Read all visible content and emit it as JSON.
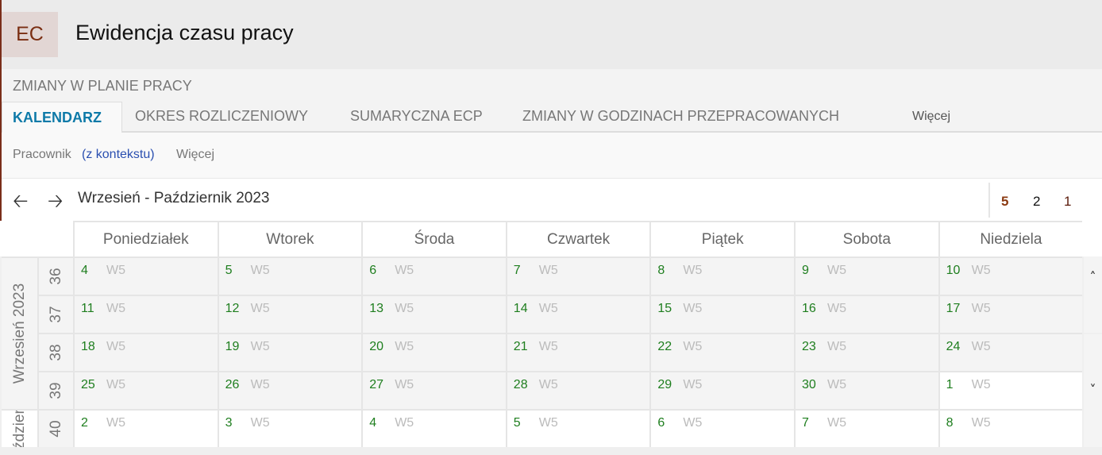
{
  "app": {
    "logo": "EC",
    "title": "Ewidencja czasu pracy"
  },
  "section_title": "ZMIANY W PLANIE PRACY",
  "tabs": [
    {
      "label": "KALENDARZ",
      "active": true
    },
    {
      "label": "OKRES ROZLICZENIOWY"
    },
    {
      "label": "SUMARYCZNA ECP"
    },
    {
      "label": "ZMIANY W GODZINACH PRZEPRACOWANYCH"
    },
    {
      "label": "Więcej"
    }
  ],
  "toolbar": {
    "employee_label": "Pracownik",
    "employee_context": "(z kontekstu)",
    "more": "Więcej"
  },
  "nav": {
    "prev_icon": "arrow-left",
    "next_icon": "arrow-right",
    "period": "Wrzesień - Październik 2023",
    "views": [
      "5",
      "2",
      "1"
    ],
    "active_view": "5",
    "active_color": "#8b3a12"
  },
  "days": [
    "Poniedziałek",
    "Wtorek",
    "Środa",
    "Czwartek",
    "Piątek",
    "Sobota",
    "Niedziela"
  ],
  "months": [
    "Wrzesień 2023",
    "Październik"
  ],
  "weeks": [
    {
      "number": "36",
      "cells": [
        {
          "d": "4",
          "s": "W5"
        },
        {
          "d": "5",
          "s": "W5"
        },
        {
          "d": "6",
          "s": "W5"
        },
        {
          "d": "7",
          "s": "W5"
        },
        {
          "d": "8",
          "s": "W5"
        },
        {
          "d": "9",
          "s": "W5"
        },
        {
          "d": "10",
          "s": "W5"
        }
      ]
    },
    {
      "number": "37",
      "cells": [
        {
          "d": "11",
          "s": "W5"
        },
        {
          "d": "12",
          "s": "W5"
        },
        {
          "d": "13",
          "s": "W5"
        },
        {
          "d": "14",
          "s": "W5"
        },
        {
          "d": "15",
          "s": "W5"
        },
        {
          "d": "16",
          "s": "W5"
        },
        {
          "d": "17",
          "s": "W5"
        }
      ]
    },
    {
      "number": "38",
      "cells": [
        {
          "d": "18",
          "s": "W5"
        },
        {
          "d": "19",
          "s": "W5"
        },
        {
          "d": "20",
          "s": "W5"
        },
        {
          "d": "21",
          "s": "W5"
        },
        {
          "d": "22",
          "s": "W5"
        },
        {
          "d": "23",
          "s": "W5"
        },
        {
          "d": "24",
          "s": "W5"
        }
      ]
    },
    {
      "number": "39",
      "cells": [
        {
          "d": "25",
          "s": "W5"
        },
        {
          "d": "26",
          "s": "W5"
        },
        {
          "d": "27",
          "s": "W5"
        },
        {
          "d": "28",
          "s": "W5"
        },
        {
          "d": "29",
          "s": "W5"
        },
        {
          "d": "30",
          "s": "W5"
        },
        {
          "d": "1",
          "s": "W5",
          "next_month": true
        }
      ]
    },
    {
      "number": "40",
      "cells": [
        {
          "d": "2",
          "s": "W5",
          "next_month": true
        },
        {
          "d": "3",
          "s": "W5",
          "next_month": true
        },
        {
          "d": "4",
          "s": "W5",
          "next_month": true
        },
        {
          "d": "5",
          "s": "W5",
          "next_month": true
        },
        {
          "d": "6",
          "s": "W5",
          "next_month": true
        },
        {
          "d": "7",
          "s": "W5",
          "next_month": true
        },
        {
          "d": "8",
          "s": "W5",
          "next_month": true
        }
      ]
    }
  ],
  "scroll": {
    "up": "˄",
    "down": "˅"
  }
}
